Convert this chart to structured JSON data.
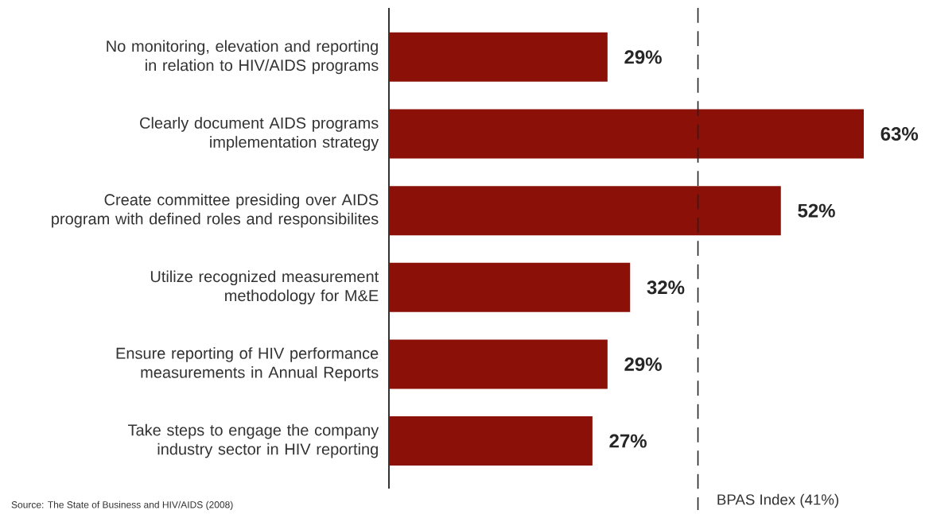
{
  "chart_data": {
    "type": "bar",
    "orientation": "horizontal",
    "categories": [
      "No monitoring, elevation and reporting in relation to HIV/AIDS programs",
      "Clearly document AIDS programs implementation strategy",
      "Create committee presiding over AIDS program with defined roles and responsibilites",
      "Utilize recognized measurement methodology for M&E",
      "Ensure reporting of HIV performance measurements in Annual Reports",
      "Take steps to engage the company industry sector in HIV reporting"
    ],
    "values": [
      29,
      63,
      52,
      32,
      29,
      27
    ],
    "value_labels": [
      "29%",
      "63%",
      "52%",
      "32%",
      "29%",
      "27%"
    ],
    "color": "#8b1007",
    "xlim": [
      0,
      63
    ],
    "ref_lines": [
      {
        "axis": "x",
        "value": 41,
        "label": "BPAS Index (41%)",
        "color": "#222222",
        "line_style": "dashed"
      }
    ],
    "annotations": [
      "Source: The State of Business and HIV/AIDS (2008)"
    ]
  }
}
